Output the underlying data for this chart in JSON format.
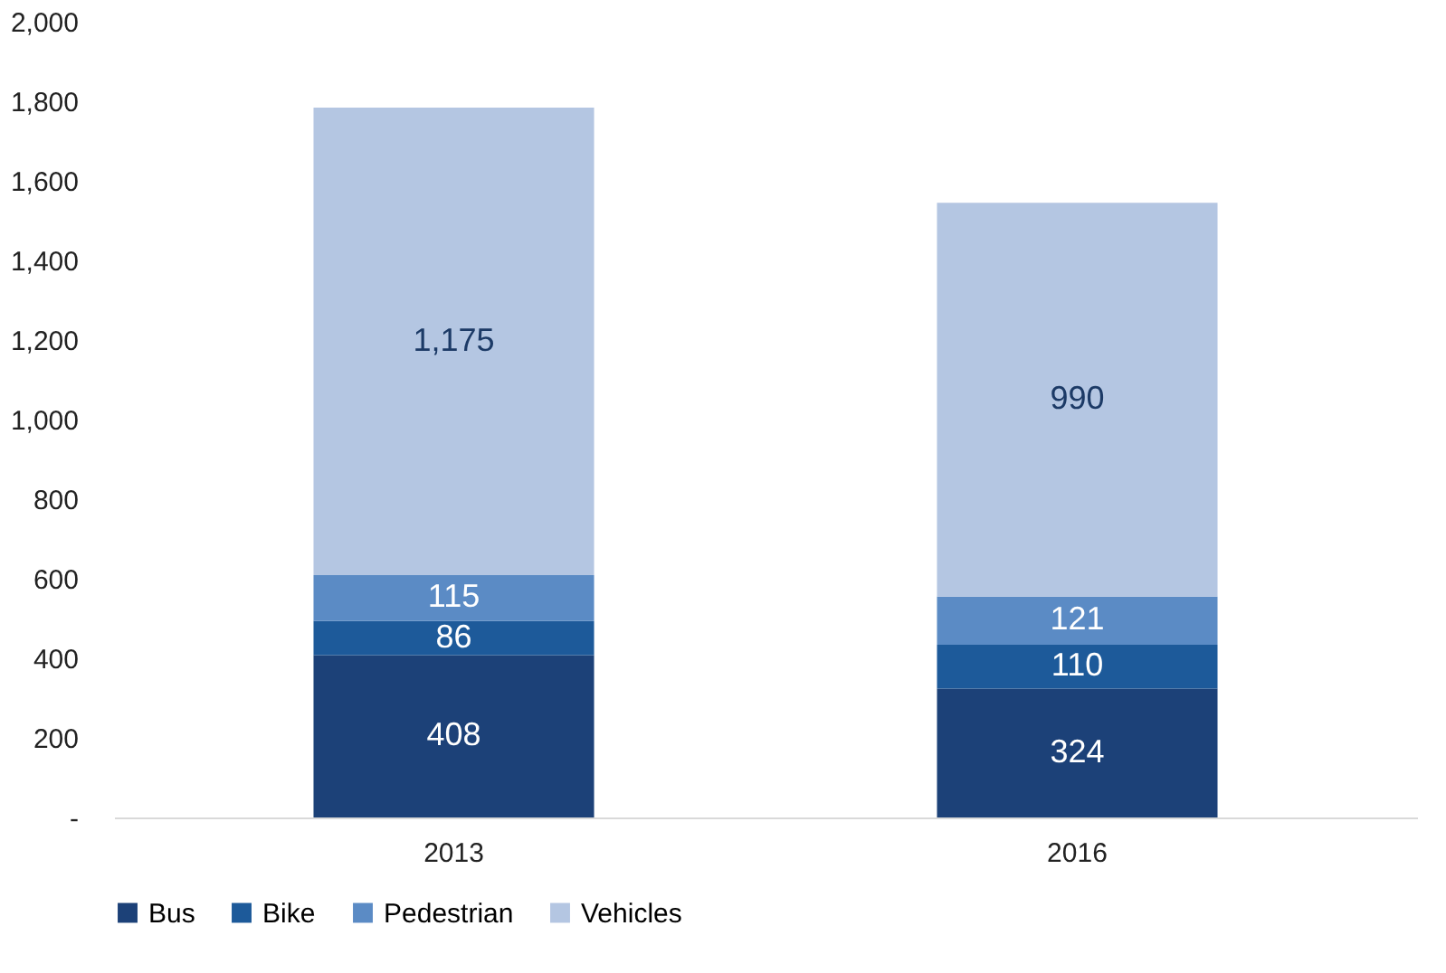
{
  "chart_data": {
    "type": "bar",
    "stacked": true,
    "categories": [
      "2013",
      "2016"
    ],
    "series": [
      {
        "name": "Bus",
        "color": "#1c4178",
        "values": [
          408,
          324
        ]
      },
      {
        "name": "Bike",
        "color": "#1d5a9a",
        "values": [
          86,
          110
        ]
      },
      {
        "name": "Pedestrian",
        "color": "#5b8bc5",
        "values": [
          115,
          121
        ]
      },
      {
        "name": "Vehicles",
        "color": "#b4c6e2",
        "values": [
          1175,
          990
        ],
        "value_labels": [
          "1,175",
          "990"
        ]
      }
    ],
    "ylim": [
      0,
      2000
    ],
    "yticks": [
      {
        "value": 0,
        "label": "-"
      },
      200,
      400,
      600,
      800,
      {
        "value": 1000,
        "label": "1,000"
      },
      {
        "value": 1200,
        "label": "1,200"
      },
      {
        "value": 1400,
        "label": "1,400"
      },
      {
        "value": 1600,
        "label": "1,600"
      },
      {
        "value": 1800,
        "label": "1,800"
      },
      {
        "value": 2000,
        "label": "2,000"
      }
    ],
    "data_labels": true,
    "grid": false,
    "legend": "bottom"
  }
}
